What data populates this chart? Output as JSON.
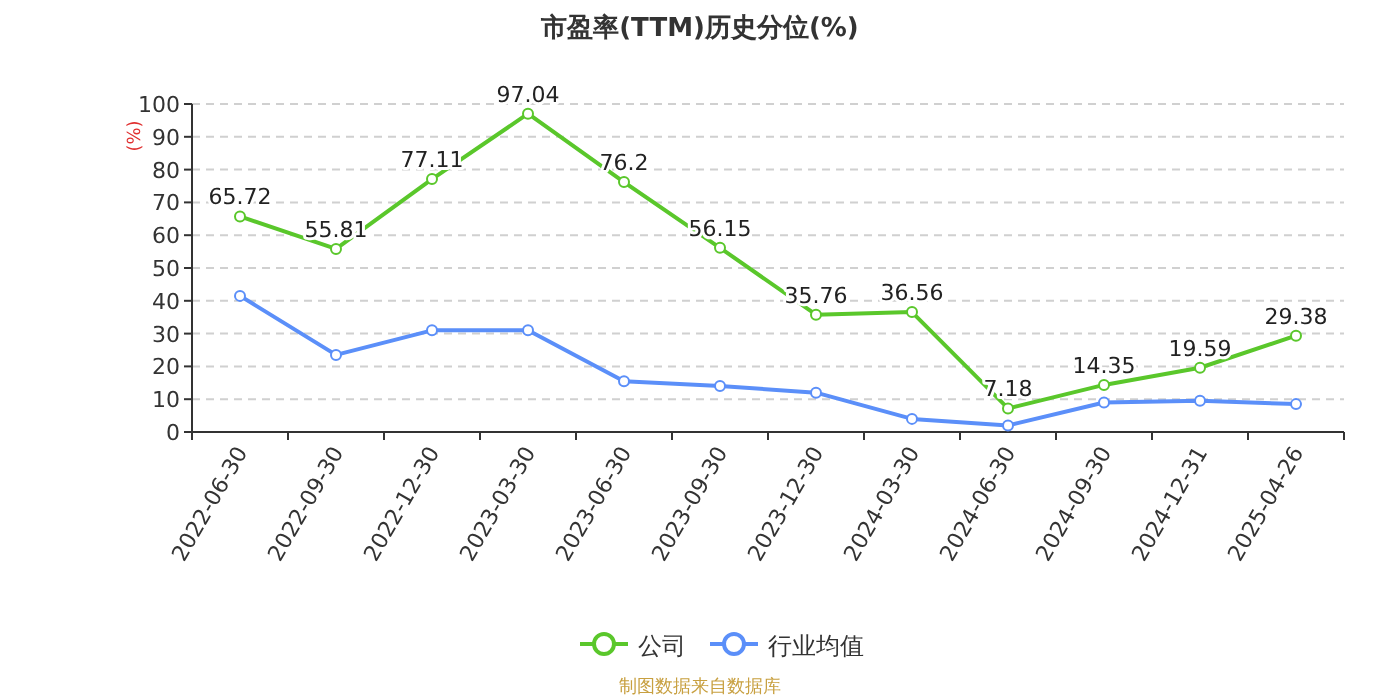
{
  "chart_data": {
    "type": "line",
    "title": "市盈率(TTM)历史分位(%)",
    "ylabel": "(%)",
    "categories": [
      "2022-06-30",
      "2022-09-30",
      "2022-12-30",
      "2023-03-30",
      "2023-06-30",
      "2023-09-30",
      "2023-12-30",
      "2024-03-30",
      "2024-06-30",
      "2024-09-30",
      "2024-12-31",
      "2025-04-26"
    ],
    "series": [
      {
        "name": "公司",
        "color": "#5ac72b",
        "values": [
          65.72,
          55.81,
          77.11,
          97.04,
          76.2,
          56.15,
          35.76,
          36.56,
          7.18,
          14.35,
          19.59,
          29.38
        ],
        "value_labels": [
          "65.72",
          "55.81",
          "77.11",
          "97.04",
          "76.2",
          "56.15",
          "35.76",
          "36.56",
          "7.18",
          "14.35",
          "19.59",
          "29.38"
        ]
      },
      {
        "name": "行业均值",
        "color": "#5b8ff9",
        "values": [
          41.5,
          23.5,
          31,
          31,
          15.5,
          14,
          12,
          4,
          2,
          9,
          9.5,
          8.5
        ]
      }
    ],
    "ylim": [
      0,
      100
    ],
    "yticks": [
      0,
      10,
      20,
      30,
      40,
      50,
      60,
      70,
      80,
      90,
      100
    ],
    "grid": "y",
    "legend": "bottom",
    "marker": "circle",
    "line_style": "solid",
    "annotations": [
      "制图数据来自数据库"
    ]
  }
}
